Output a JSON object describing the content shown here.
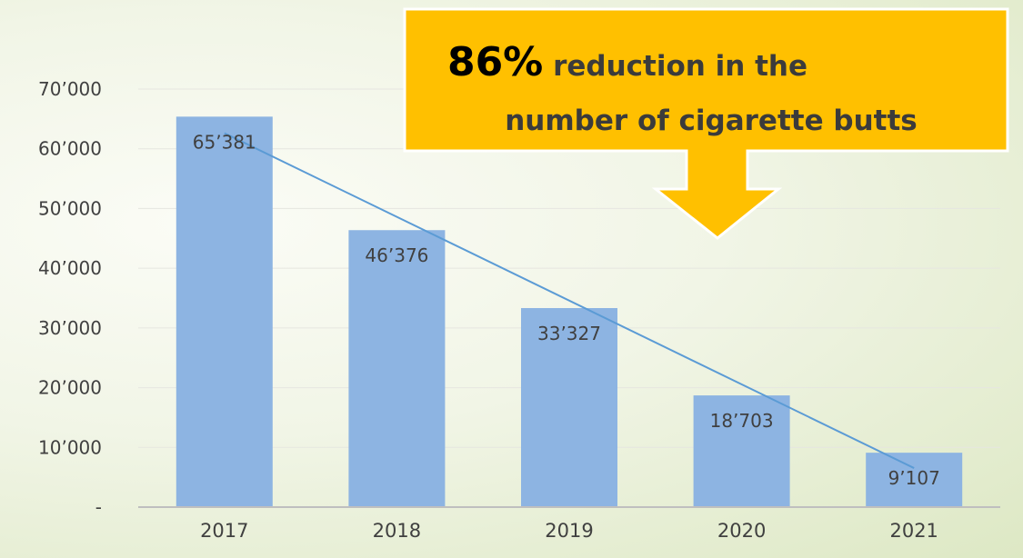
{
  "chart_data": {
    "type": "bar",
    "categories": [
      "2017",
      "2018",
      "2019",
      "2020",
      "2021"
    ],
    "values": [
      65381,
      46376,
      33327,
      18703,
      9107
    ],
    "data_labels": [
      "65’381",
      "46’376",
      "33’327",
      "18’703",
      "9’107"
    ],
    "y_ticks": [
      0,
      10000,
      20000,
      30000,
      40000,
      50000,
      60000,
      70000
    ],
    "y_tick_labels": [
      "-",
      "10’000",
      "20’000",
      "30’000",
      "40’000",
      "50’000",
      "60’000",
      "70’000"
    ],
    "ylim": [
      0,
      70000
    ],
    "title": "",
    "xlabel": "",
    "ylabel": "",
    "grid": true,
    "legend": "none",
    "trendline": {
      "type": "linear",
      "visible": true
    },
    "colors": {
      "bar": "#8db4e2",
      "trendline": "#5b9bd5",
      "grid": "#e6e6e0",
      "axis": "#bfbfbf"
    }
  },
  "callout": {
    "value": "86%",
    "line1_rest": " reduction in the",
    "line2": "number of cigarette butts",
    "color": "#ffc000"
  }
}
